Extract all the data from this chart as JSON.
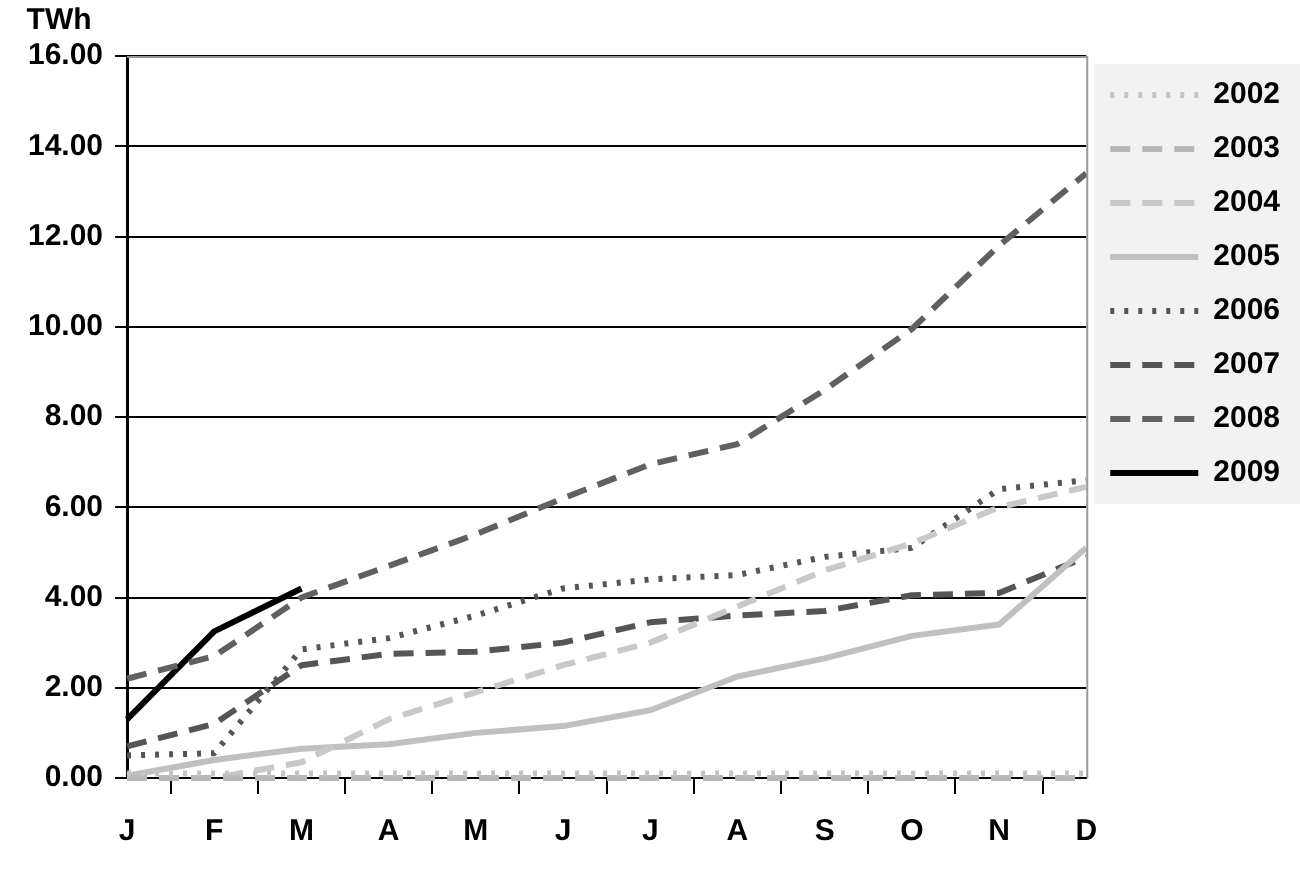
{
  "chart_data": {
    "type": "line",
    "ylabel": "TWh",
    "categories": [
      "J",
      "F",
      "M",
      "A",
      "M",
      "J",
      "J",
      "A",
      "S",
      "O",
      "N",
      "D"
    ],
    "ylim": [
      0,
      16
    ],
    "yticks": [
      {
        "value": 0,
        "label": "0.00"
      },
      {
        "value": 2,
        "label": "2.00"
      },
      {
        "value": 4,
        "label": "4.00"
      },
      {
        "value": 6,
        "label": "6.00"
      },
      {
        "value": 8,
        "label": "8.00"
      },
      {
        "value": 10,
        "label": "10.00"
      },
      {
        "value": 12,
        "label": "12.00"
      },
      {
        "value": 14,
        "label": "14.00"
      },
      {
        "value": 16,
        "label": "16.00"
      }
    ],
    "grid": "y",
    "legend": "right",
    "marker": "none",
    "series": [
      {
        "name": "2002",
        "color": "#c4c4c4",
        "line_style": "dotted",
        "values": [
          0.1,
          0.1,
          0.1,
          0.1,
          0.1,
          0.1,
          0.1,
          0.1,
          0.1,
          0.1,
          0.1,
          0.1
        ]
      },
      {
        "name": "2003",
        "color": "#b8b8b8",
        "line_style": "dashed",
        "values": [
          0,
          0,
          0,
          0,
          0,
          0,
          0,
          0,
          0,
          0,
          0,
          0
        ]
      },
      {
        "name": "2004",
        "color": "#c8c8c8",
        "line_style": "dashed",
        "values": [
          0,
          0,
          0.35,
          1.3,
          1.9,
          2.5,
          3.0,
          3.8,
          4.6,
          5.2,
          6.0,
          6.45
        ]
      },
      {
        "name": "2005",
        "color": "#c0c0c0",
        "line_style": "solid",
        "values": [
          0.05,
          0.4,
          0.65,
          0.75,
          1.0,
          1.15,
          1.5,
          2.25,
          2.65,
          3.15,
          3.4,
          5.1
        ]
      },
      {
        "name": "2006",
        "color": "#555555",
        "line_style": "dotted",
        "values": [
          0.5,
          0.55,
          2.85,
          3.1,
          3.6,
          4.2,
          4.4,
          4.5,
          4.9,
          5.1,
          6.4,
          6.6
        ]
      },
      {
        "name": "2007",
        "color": "#555555",
        "line_style": "dashed",
        "values": [
          0.7,
          1.2,
          2.5,
          2.75,
          2.8,
          3.0,
          3.45,
          3.6,
          3.7,
          4.05,
          4.1,
          4.9
        ]
      },
      {
        "name": "2008",
        "color": "#606060",
        "line_style": "dashed",
        "values": [
          2.2,
          2.7,
          4.0,
          4.7,
          5.4,
          6.2,
          6.95,
          7.4,
          8.6,
          9.95,
          11.8,
          13.4
        ]
      },
      {
        "name": "2009",
        "color": "#000000",
        "line_style": "solid",
        "values": [
          1.3,
          3.25,
          4.2,
          null,
          null,
          null,
          null,
          null,
          null,
          null,
          null,
          null
        ]
      }
    ]
  }
}
